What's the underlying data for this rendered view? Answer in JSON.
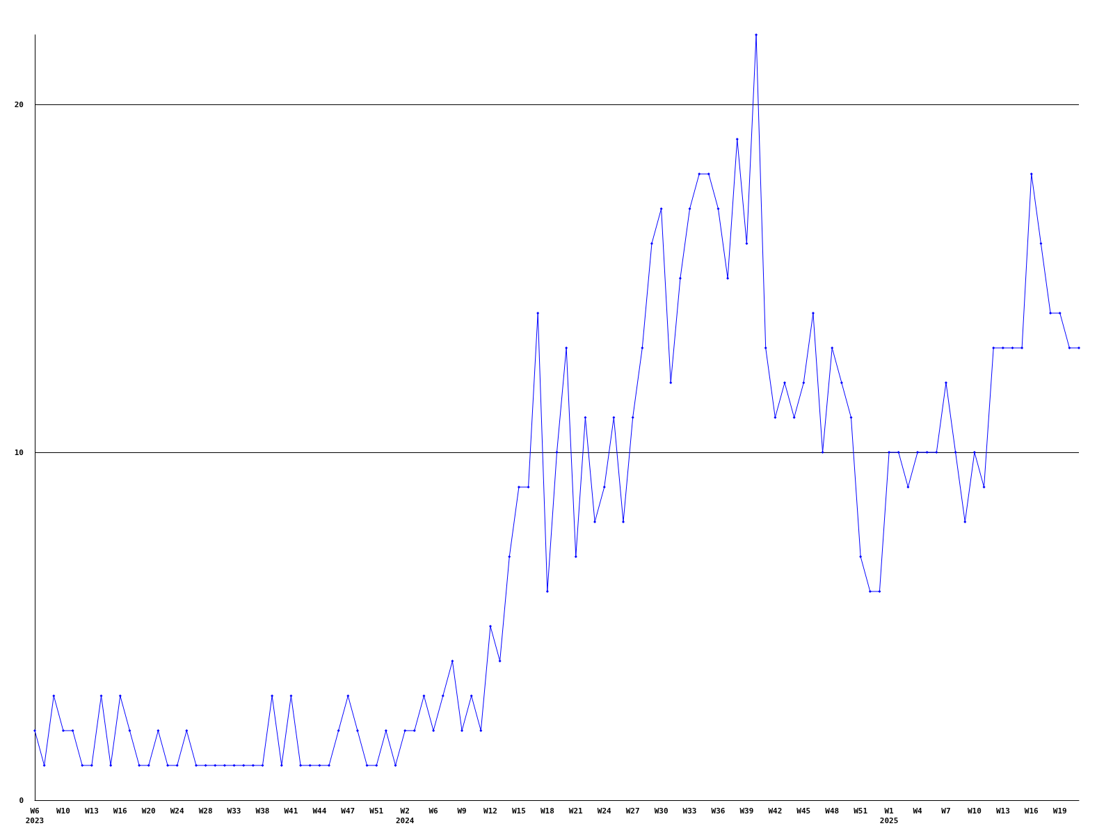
{
  "chart_data": {
    "type": "line",
    "categories": [
      "W6\n2023",
      null,
      null,
      "W10",
      null,
      null,
      "W13",
      null,
      null,
      "W16",
      null,
      null,
      "W20",
      null,
      null,
      "W24",
      null,
      null,
      "W28",
      null,
      null,
      "W33",
      null,
      null,
      "W38",
      null,
      null,
      "W41",
      null,
      null,
      "W44",
      null,
      null,
      "W47",
      null,
      null,
      "W51",
      null,
      null,
      "W2\n2024",
      null,
      null,
      "W6",
      null,
      null,
      "W9",
      null,
      null,
      "W12",
      null,
      null,
      "W15",
      null,
      null,
      "W18",
      null,
      null,
      "W21",
      null,
      null,
      "W24",
      null,
      null,
      "W27",
      null,
      null,
      "W30",
      null,
      null,
      "W33",
      null,
      null,
      "W36",
      null,
      null,
      "W39",
      null,
      null,
      "W42",
      null,
      null,
      "W45",
      null,
      null,
      "W48",
      null,
      null,
      "W51",
      null,
      null,
      "W1\n2025",
      null,
      null,
      "W4",
      null,
      null,
      "W7",
      null,
      null,
      "W10",
      null,
      null,
      "W13",
      null,
      null,
      "W16",
      null,
      null,
      "W19",
      null,
      null
    ],
    "series": [
      {
        "color": "#0000ff",
        "values": [
          2,
          1,
          3,
          2,
          2,
          1,
          1,
          3,
          1,
          3,
          2,
          1,
          1,
          2,
          1,
          1,
          2,
          1,
          1,
          1,
          1,
          1,
          1,
          1,
          1,
          3,
          1,
          3,
          1,
          1,
          1,
          1,
          2,
          3,
          2,
          1,
          1,
          2,
          1,
          2,
          2,
          3,
          2,
          3,
          4,
          2,
          3,
          2,
          5,
          4,
          7,
          9,
          9,
          14,
          6,
          10,
          13,
          7,
          11,
          8,
          9,
          11,
          8,
          11,
          13,
          16,
          17,
          12,
          15,
          17,
          18,
          18,
          17,
          15,
          19,
          16,
          22,
          13,
          11,
          12,
          11,
          12,
          14,
          10,
          13,
          12,
          11,
          7,
          6,
          6,
          10,
          10,
          9,
          10,
          10,
          10,
          12,
          10,
          8,
          10,
          9,
          13,
          13,
          13,
          13,
          18,
          16,
          14,
          14,
          13,
          13
        ]
      }
    ],
    "ylim": [
      0,
      22
    ],
    "yticks": [
      0,
      10,
      20
    ],
    "grid": "y",
    "marker": "diamond",
    "line_style": "solid"
  }
}
